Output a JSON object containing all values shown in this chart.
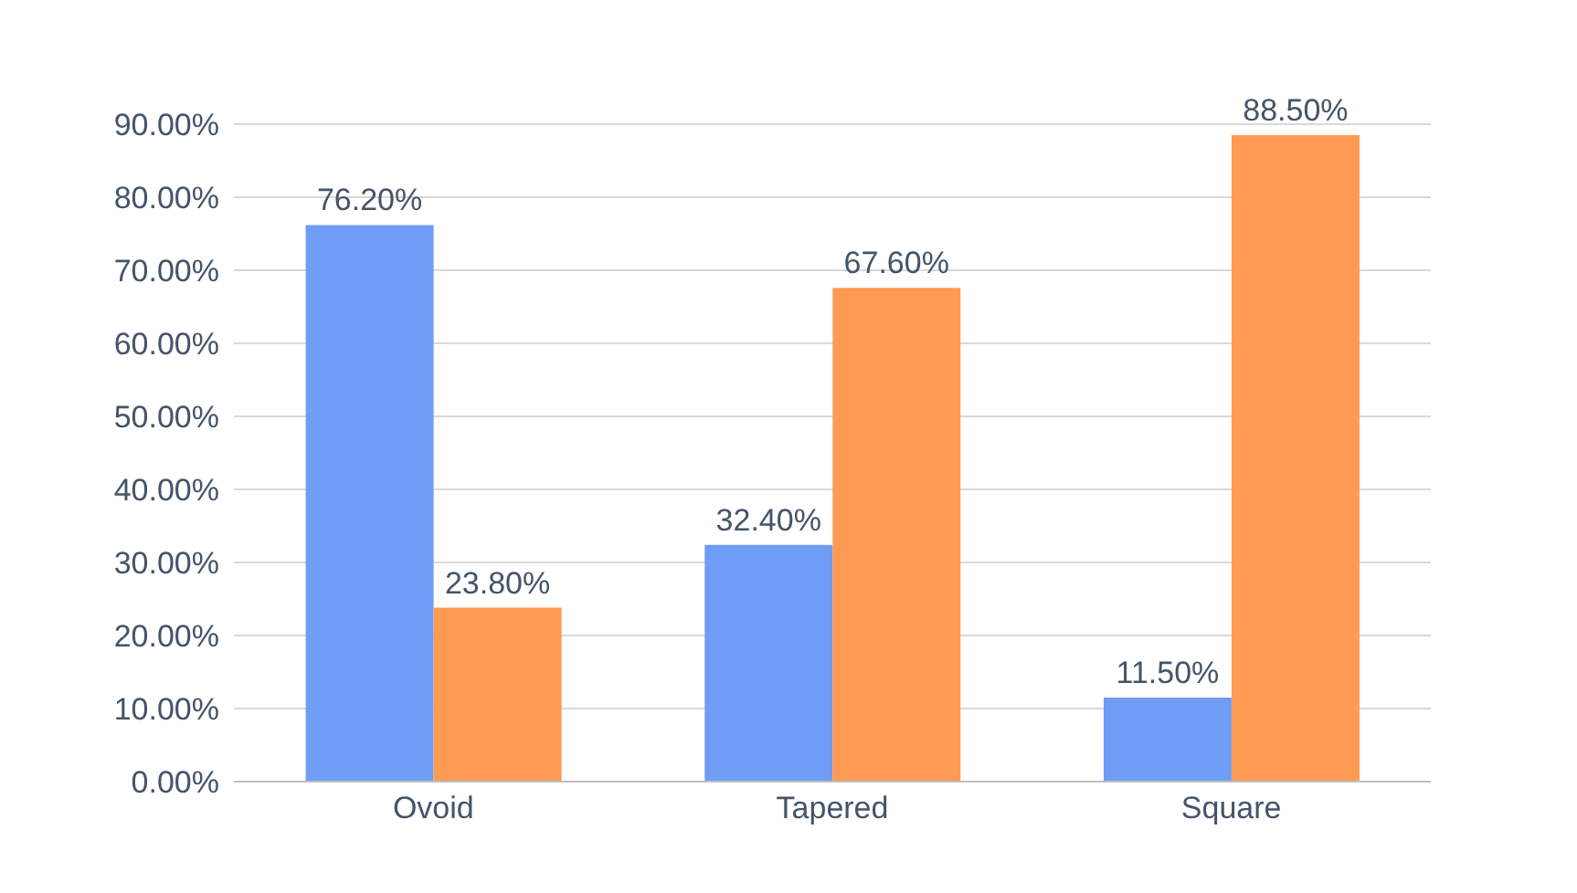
{
  "chart_data": {
    "type": "bar",
    "categories": [
      "Ovoid",
      "Tapered",
      "Square"
    ],
    "series": [
      {
        "color": "#6f9cf5",
        "values": [
          76.2,
          32.4,
          11.5
        ],
        "value_labels": [
          "76.20%",
          "32.40%",
          "11.50%"
        ]
      },
      {
        "color": "#ff9a52",
        "values": [
          23.8,
          67.6,
          88.5
        ],
        "value_labels": [
          "23.80%",
          "67.60%",
          "88.50%"
        ]
      }
    ],
    "ylim": [
      0,
      90
    ],
    "yticks": [
      {
        "value": 0,
        "label": "0.00%"
      },
      {
        "value": 10,
        "label": "10.00%"
      },
      {
        "value": 20,
        "label": "20.00%"
      },
      {
        "value": 30,
        "label": "30.00%"
      },
      {
        "value": 40,
        "label": "40.00%"
      },
      {
        "value": 50,
        "label": "50.00%"
      },
      {
        "value": 60,
        "label": "60.00%"
      },
      {
        "value": 70,
        "label": "70.00%"
      },
      {
        "value": 80,
        "label": "80.00%"
      },
      {
        "value": 90,
        "label": "90.00%"
      }
    ],
    "grid": "y"
  }
}
